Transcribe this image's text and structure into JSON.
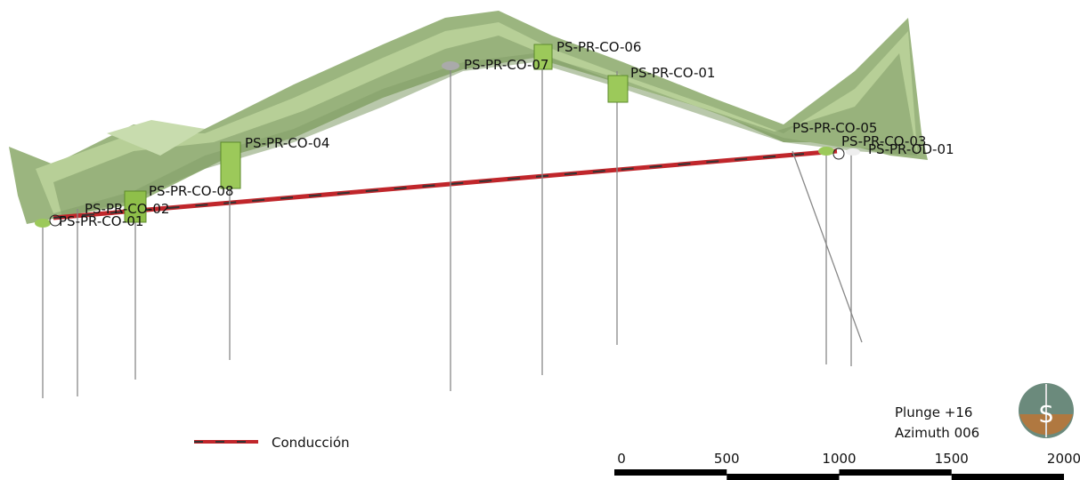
{
  "view": {
    "boreholes": [
      "PS-PR-CO-01",
      "PS-PR-CO-02",
      "PS-PR-CO-08",
      "PS-PR-CO-04",
      "PS-PR-CO-07",
      "PS-PR-CO-06",
      "PS-PR-CO-01",
      "PS-PR-CO-05",
      "PS-PR-CO-03",
      "PS-PR-OD-01"
    ],
    "legend": {
      "label": "Conducción"
    },
    "orientation": {
      "plunge": "Plunge +16",
      "azimuth": "Azimuth 006",
      "compass": "S"
    },
    "scale_bar": {
      "ticks": [
        0,
        500,
        1000,
        1500,
        2000
      ]
    }
  }
}
